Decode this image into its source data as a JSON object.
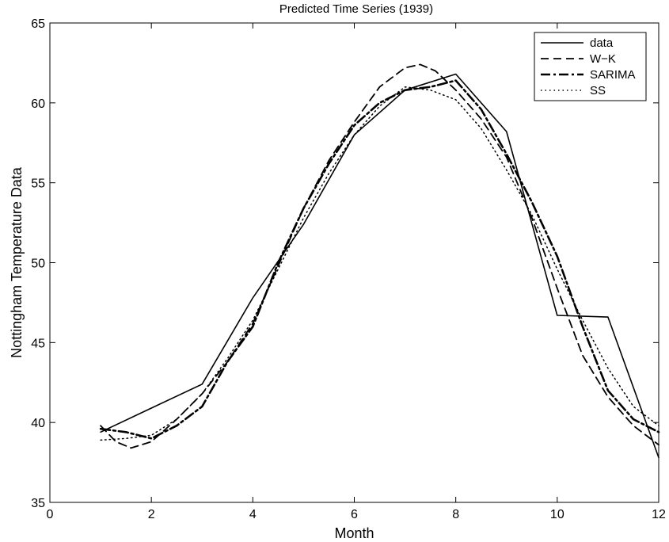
{
  "chart_data": {
    "type": "line",
    "title": "Predicted Time Series (1939)",
    "xlabel": "Month",
    "ylabel": "Nottingham Temperature Data",
    "xlim": [
      0,
      12
    ],
    "ylim": [
      35,
      65
    ],
    "xticks": [
      0,
      2,
      4,
      6,
      8,
      10,
      12
    ],
    "yticks": [
      35,
      40,
      45,
      50,
      55,
      60,
      65
    ],
    "grid": false,
    "legend_position": "top-right",
    "series": [
      {
        "name": "data",
        "style": "solid",
        "x": [
          1,
          2,
          3,
          4,
          5,
          6,
          7,
          8,
          9,
          10,
          11,
          12
        ],
        "y": [
          39.4,
          40.9,
          42.4,
          47.8,
          52.4,
          58.0,
          60.8,
          61.8,
          58.2,
          46.7,
          46.6,
          37.8
        ]
      },
      {
        "name": "W−K",
        "style": "dashed",
        "x": [
          1,
          1.3,
          1.6,
          2,
          2.5,
          3,
          3.5,
          4,
          4.5,
          5,
          5.5,
          6,
          6.5,
          7,
          7.3,
          7.6,
          8,
          8.5,
          9,
          9.5,
          10,
          10.5,
          11,
          11.5,
          12
        ],
        "y": [
          39.8,
          38.8,
          38.4,
          38.8,
          40.2,
          41.8,
          43.8,
          46.2,
          49.8,
          53.4,
          56.4,
          58.8,
          61.0,
          62.2,
          62.4,
          62.0,
          60.8,
          59.0,
          56.6,
          52.8,
          48.4,
          44.2,
          41.6,
          39.8,
          38.6
        ]
      },
      {
        "name": "SARIMA",
        "style": "dashdot",
        "x": [
          1,
          1.5,
          2,
          2.5,
          3,
          3.5,
          4,
          4.5,
          5,
          5.5,
          6,
          6.5,
          7,
          7.5,
          8,
          8.5,
          9,
          9.5,
          10,
          10.5,
          11,
          11.5,
          12
        ],
        "y": [
          39.6,
          39.4,
          39.0,
          39.8,
          41.0,
          43.8,
          46.0,
          50.0,
          53.4,
          56.2,
          58.6,
          60.0,
          60.8,
          61.0,
          61.4,
          59.6,
          56.8,
          53.8,
          50.4,
          46.0,
          42.0,
          40.2,
          39.4
        ]
      },
      {
        "name": "SS",
        "style": "dotted",
        "x": [
          1,
          1.5,
          2,
          2.5,
          3,
          3.5,
          4,
          4.5,
          5,
          5.5,
          6,
          6.5,
          7,
          7.5,
          8,
          8.5,
          9,
          9.5,
          10,
          10.5,
          11,
          11.5,
          12
        ],
        "y": [
          38.9,
          39.0,
          39.2,
          40.2,
          41.8,
          44.0,
          46.4,
          49.6,
          52.8,
          55.6,
          58.0,
          59.8,
          61.0,
          60.8,
          60.2,
          58.4,
          55.8,
          53.0,
          49.6,
          46.4,
          43.4,
          41.0,
          39.8
        ]
      }
    ]
  }
}
